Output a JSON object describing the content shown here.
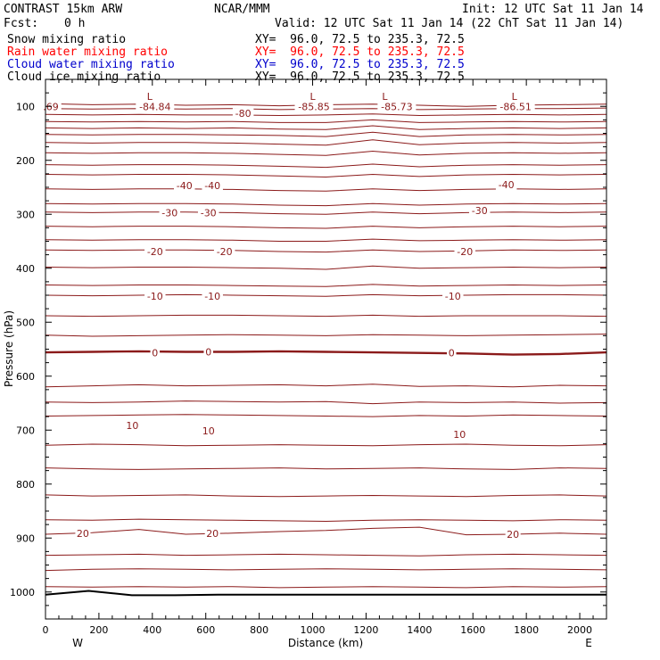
{
  "header": {
    "title": "CONTRAST 15km ARW",
    "org": "NCAR/MMM",
    "init": "Init: 12 UTC Sat 11 Jan 14",
    "fcst_label": "Fcst:",
    "fcst_value": "0 h",
    "valid": "Valid: 12 UTC Sat 11 Jan 14 (22 ChT Sat 11 Jan 14)"
  },
  "fields": [
    {
      "label": "Snow mixing ratio",
      "xy": "XY=  96.0, 72.5 to 235.3, 72.5",
      "color": "#000000"
    },
    {
      "label": "Rain water mixing ratio",
      "xy": "XY=  96.0, 72.5 to 235.3, 72.5",
      "color": "#ff0000"
    },
    {
      "label": "Cloud water mixing ratio",
      "xy": "XY=  96.0, 72.5 to 235.3, 72.5",
      "color": "#0000cc"
    },
    {
      "label": "Cloud ice mixing ratio",
      "xy": "XY=  96.0, 72.5 to 235.3, 72.5",
      "color": "#000000"
    }
  ],
  "chart_data": {
    "type": "line",
    "xlabel": "Distance (km)",
    "ylabel": "Pressure (hPa)",
    "xlim": [
      0,
      2100
    ],
    "ylim": [
      1050,
      50
    ],
    "x_ticks": [
      "0",
      "200",
      "400",
      "600",
      "800",
      "1000",
      "1200",
      "1400",
      "1600",
      "1800",
      "2000"
    ],
    "y_ticks": [
      "100",
      "200",
      "300",
      "400",
      "500",
      "600",
      "700",
      "800",
      "900",
      "1000"
    ],
    "x_end_labels": {
      "left": "W",
      "right": "E"
    },
    "contour_color": "#8b1a1a",
    "surface_color": "#000000",
    "contours": [
      {
        "p": [
          95,
          97,
          96,
          98,
          97,
          99,
          97,
          96,
          98,
          100,
          98,
          97,
          96
        ]
      },
      {
        "p": [
          104,
          105,
          104,
          105,
          104,
          106,
          105,
          104,
          106,
          105,
          104,
          104,
          103
        ]
      },
      {
        "p": [
          115,
          116,
          115,
          116,
          116,
          117,
          116,
          114,
          117,
          116,
          115,
          116,
          115
        ]
      },
      {
        "p": [
          128,
          129,
          128,
          129,
          128,
          130,
          130,
          125,
          130,
          129,
          128,
          129,
          128
        ]
      },
      {
        "p": [
          140,
          141,
          140,
          141,
          140,
          142,
          143,
          136,
          143,
          141,
          140,
          141,
          140
        ]
      },
      {
        "p": [
          152,
          153,
          152,
          152,
          153,
          154,
          156,
          148,
          156,
          153,
          152,
          153,
          152
        ]
      },
      {
        "p": [
          167,
          168,
          167,
          167,
          168,
          170,
          172,
          162,
          171,
          168,
          167,
          168,
          167
        ]
      },
      {
        "p": [
          186,
          187,
          186,
          186,
          187,
          189,
          191,
          183,
          190,
          187,
          186,
          187,
          186
        ]
      },
      {
        "p": [
          208,
          209,
          208,
          208,
          209,
          211,
          213,
          207,
          212,
          209,
          208,
          209,
          208
        ]
      },
      {
        "p": [
          226,
          227,
          226,
          226,
          227,
          229,
          231,
          226,
          230,
          227,
          226,
          227,
          226
        ]
      },
      {
        "p": [
          253,
          254,
          253,
          253,
          254,
          256,
          257,
          253,
          256,
          254,
          253,
          254,
          253
        ]
      },
      {
        "p": [
          280,
          281,
          280,
          280,
          281,
          283,
          284,
          280,
          283,
          281,
          280,
          281,
          280
        ]
      },
      {
        "p": [
          296,
          297,
          296,
          296,
          297,
          299,
          300,
          296,
          299,
          297,
          296,
          297,
          296
        ]
      },
      {
        "p": [
          322,
          323,
          322,
          322,
          323,
          325,
          326,
          322,
          325,
          323,
          322,
          323,
          322
        ]
      },
      {
        "p": [
          347,
          348,
          347,
          347,
          348,
          350,
          350,
          346,
          349,
          348,
          347,
          348,
          347
        ]
      },
      {
        "p": [
          366,
          367,
          366,
          366,
          367,
          369,
          370,
          366,
          369,
          368,
          366,
          367,
          366
        ]
      },
      {
        "p": [
          398,
          399,
          398,
          398,
          399,
          400,
          402,
          396,
          400,
          399,
          398,
          399,
          398
        ]
      },
      {
        "p": [
          431,
          432,
          431,
          431,
          432,
          433,
          434,
          430,
          433,
          432,
          431,
          432,
          431
        ]
      },
      {
        "p": [
          450,
          451,
          450,
          449,
          450,
          451,
          452,
          449,
          451,
          450,
          449,
          449,
          450
        ]
      },
      {
        "p": [
          488,
          489,
          488,
          487,
          487,
          488,
          489,
          487,
          489,
          488,
          488,
          488,
          489
        ]
      },
      {
        "p": [
          524,
          526,
          525,
          524,
          523,
          524,
          525,
          523,
          524,
          525,
          524,
          523,
          522
        ]
      },
      {
        "p": [
          556,
          555,
          554,
          555,
          555,
          554,
          555,
          556,
          557,
          558,
          560,
          559,
          556
        ],
        "label": "0"
      },
      {
        "p": [
          620,
          618,
          616,
          618,
          617,
          616,
          618,
          615,
          619,
          618,
          620,
          617,
          618
        ]
      },
      {
        "p": [
          648,
          649,
          648,
          646,
          647,
          648,
          647,
          651,
          648,
          649,
          648,
          650,
          649
        ]
      },
      {
        "p": [
          674,
          673,
          672,
          671,
          672,
          673,
          674,
          675,
          673,
          674,
          672,
          673,
          674
        ]
      },
      {
        "p": [
          728,
          726,
          727,
          729,
          728,
          727,
          728,
          729,
          727,
          726,
          728,
          729,
          727
        ]
      },
      {
        "p": [
          770,
          772,
          773,
          772,
          771,
          770,
          772,
          771,
          770,
          772,
          773,
          770,
          771
        ]
      },
      {
        "p": [
          820,
          822,
          821,
          820,
          822,
          823,
          822,
          821,
          822,
          823,
          821,
          820,
          822
        ]
      },
      {
        "p": [
          866,
          867,
          865,
          866,
          867,
          868,
          869,
          867,
          866,
          867,
          868,
          866,
          867
        ]
      },
      {
        "p": [
          893,
          890,
          884,
          893,
          891,
          888,
          886,
          882,
          880,
          894,
          893,
          891,
          893
        ]
      },
      {
        "p": [
          932,
          931,
          930,
          932,
          931,
          930,
          931,
          932,
          933,
          931,
          930,
          931,
          932
        ]
      },
      {
        "p": [
          960,
          958,
          957,
          958,
          959,
          958,
          957,
          958,
          959,
          958,
          957,
          958,
          959
        ]
      },
      {
        "p": [
          990,
          991,
          990,
          991,
          990,
          992,
          991,
          990,
          991,
          992,
          990,
          991,
          990
        ]
      }
    ],
    "contour_labels": [
      {
        "text": ".69",
        "x": 20,
        "p": 100
      },
      {
        "text": "-84.84",
        "x": 410,
        "p": 100
      },
      {
        "text": "-80",
        "x": 740,
        "p": 113
      },
      {
        "text": "-85.85",
        "x": 1005,
        "p": 100
      },
      {
        "text": "-85.73",
        "x": 1315,
        "p": 100
      },
      {
        "text": "-86.51",
        "x": 1760,
        "p": 100
      },
      {
        "text": "-40",
        "x": 520,
        "p": 247
      },
      {
        "text": "-40",
        "x": 625,
        "p": 247
      },
      {
        "text": "-40",
        "x": 1725,
        "p": 245
      },
      {
        "text": "-30",
        "x": 465,
        "p": 297
      },
      {
        "text": "-30",
        "x": 610,
        "p": 297
      },
      {
        "text": "-30",
        "x": 1625,
        "p": 293
      },
      {
        "text": "-20",
        "x": 410,
        "p": 369
      },
      {
        "text": "-20",
        "x": 670,
        "p": 369
      },
      {
        "text": "-20",
        "x": 1570,
        "p": 369
      },
      {
        "text": "-10",
        "x": 410,
        "p": 452
      },
      {
        "text": "-10",
        "x": 625,
        "p": 452
      },
      {
        "text": "-10",
        "x": 1525,
        "p": 452
      },
      {
        "text": "0",
        "x": 410,
        "p": 557
      },
      {
        "text": "0",
        "x": 610,
        "p": 555
      },
      {
        "text": "0",
        "x": 1520,
        "p": 557
      },
      {
        "text": "10",
        "x": 325,
        "p": 691
      },
      {
        "text": "10",
        "x": 610,
        "p": 701
      },
      {
        "text": "10",
        "x": 1550,
        "p": 708
      },
      {
        "text": "20",
        "x": 140,
        "p": 891
      },
      {
        "text": "20",
        "x": 625,
        "p": 891
      },
      {
        "text": "20",
        "x": 1750,
        "p": 893
      }
    ],
    "lows": [
      {
        "text": "L",
        "x": 390,
        "p": 88
      },
      {
        "text": "L",
        "x": 1000,
        "p": 88
      },
      {
        "text": "L",
        "x": 1270,
        "p": 88
      },
      {
        "text": "L",
        "x": 1755,
        "p": 88
      }
    ],
    "surface_p": [
      1005,
      998,
      1006,
      1006,
      1005,
      1005,
      1005,
      1005,
      1005,
      1005,
      1005,
      1005,
      1005,
      1005
    ]
  }
}
